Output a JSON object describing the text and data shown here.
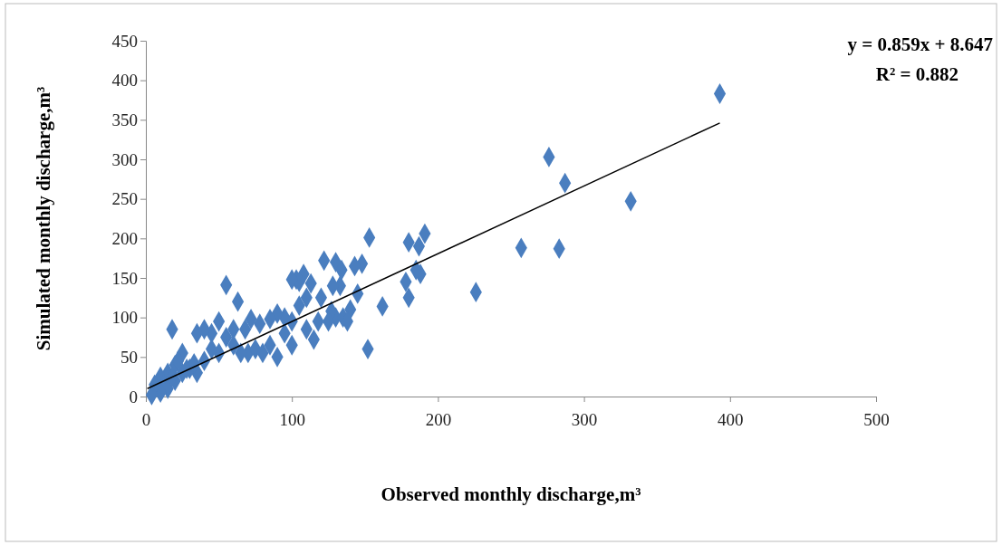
{
  "chart_data": {
    "type": "scatter",
    "xlabel": "Observed monthly discharge,m³",
    "ylabel": "Simulated monthly discharge,m³",
    "annotations": [
      "y = 0.859x + 8.647",
      "R² = 0.882"
    ],
    "xlim": [
      0,
      500
    ],
    "ylim": [
      0,
      450
    ],
    "xticks": [
      0,
      100,
      200,
      300,
      400,
      500
    ],
    "yticks": [
      0,
      50,
      100,
      150,
      200,
      250,
      300,
      350,
      400,
      450
    ],
    "grid": false,
    "series": [
      {
        "color": "#4a7ebf",
        "marker": "diamond",
        "x": [
          393,
          276,
          287,
          332,
          257,
          283,
          226,
          152,
          153,
          191,
          180,
          187,
          188,
          178,
          180,
          185,
          162,
          148,
          143,
          130,
          122,
          134,
          108,
          103,
          113,
          55,
          63,
          18,
          25,
          90,
          100,
          115,
          130,
          135,
          140,
          138,
          127,
          120,
          110,
          105,
          100,
          95,
          90,
          85,
          78,
          72,
          68,
          60,
          55,
          50,
          45,
          40,
          35,
          70,
          75,
          80,
          65,
          85,
          95,
          60,
          50,
          45,
          35,
          30,
          40,
          20,
          15,
          10,
          12,
          15,
          20,
          25,
          22,
          28,
          33,
          10,
          6,
          18,
          4,
          110,
          118,
          125,
          145,
          133,
          128,
          105,
          100
        ],
        "values": [
          383,
          303,
          270,
          247,
          188,
          187,
          132,
          60,
          201,
          206,
          195,
          190,
          155,
          145,
          125,
          160,
          114,
          168,
          165,
          170,
          172,
          160,
          155,
          148,
          143,
          141,
          120,
          85,
          55,
          50,
          65,
          72,
          100,
          100,
          110,
          95,
          108,
          125,
          125,
          115,
          95,
          100,
          105,
          98,
          92,
          98,
          85,
          85,
          75,
          95,
          80,
          85,
          80,
          55,
          60,
          55,
          55,
          65,
          80,
          65,
          55,
          60,
          30,
          35,
          45,
          40,
          30,
          25,
          15,
          10,
          20,
          30,
          45,
          35,
          42,
          5,
          15,
          25,
          2,
          85,
          95,
          95,
          130,
          140,
          140,
          145,
          148
        ]
      },
      {
        "type": "line",
        "color": "#000000",
        "marker": "none",
        "x": [
          1,
          393
        ],
        "values": [
          10,
          346
        ]
      }
    ]
  }
}
